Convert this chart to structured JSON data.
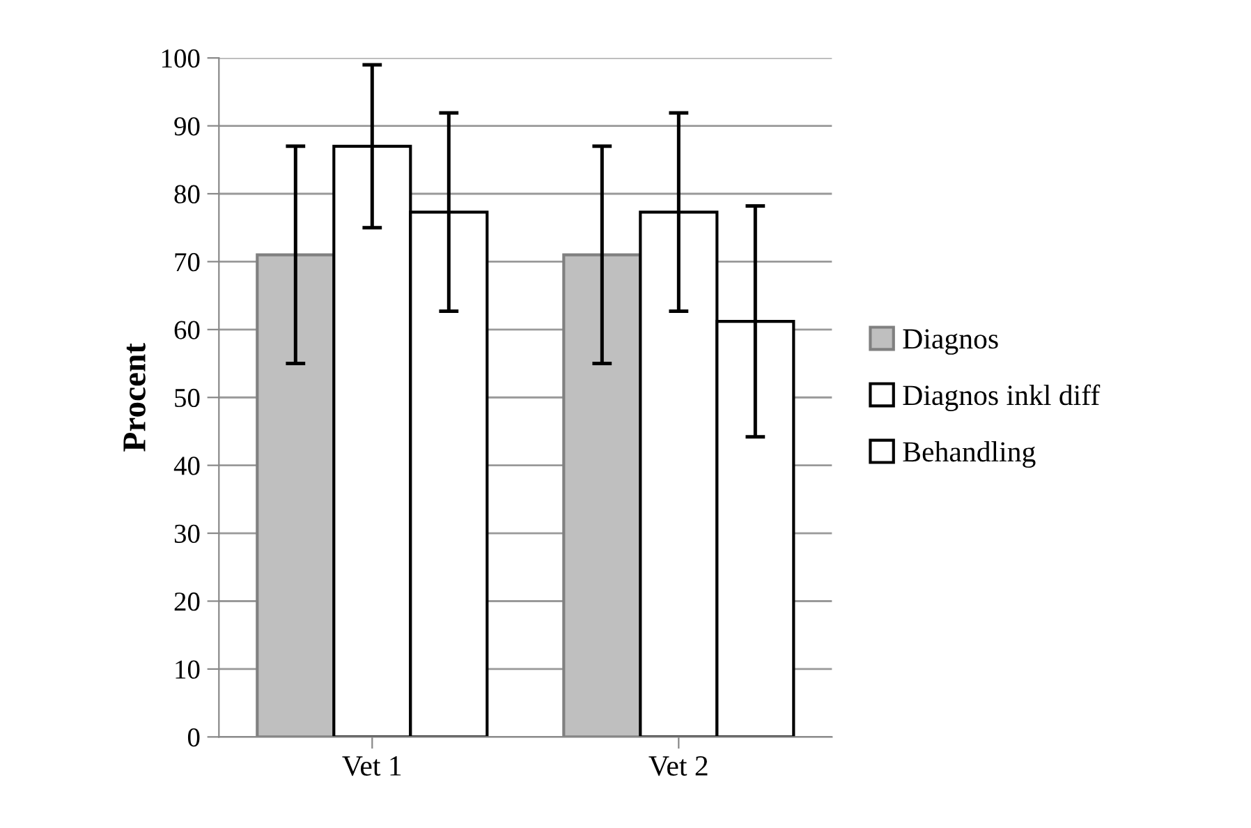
{
  "chart_data": {
    "type": "bar",
    "ylabel": "Procent",
    "categories": [
      "Vet 1",
      "Vet 2"
    ],
    "series": [
      {
        "name": "Diagnos",
        "color": "#bfbfbf",
        "values": [
          71,
          71
        ],
        "errors": [
          16,
          16
        ]
      },
      {
        "name": "Diagnos inkl diff",
        "color": "#ffffff",
        "values": [
          87,
          77.3
        ],
        "errors": [
          12,
          14.6
        ]
      },
      {
        "name": "Behandling",
        "color": "#ffffff",
        "values": [
          77.3,
          61.2
        ],
        "errors": [
          14.6,
          17
        ]
      }
    ],
    "ylim": [
      0,
      100
    ],
    "yticks": [
      0,
      10,
      20,
      30,
      40,
      50,
      60,
      70,
      80,
      90,
      100
    ],
    "grid": "y",
    "legend": "right"
  }
}
